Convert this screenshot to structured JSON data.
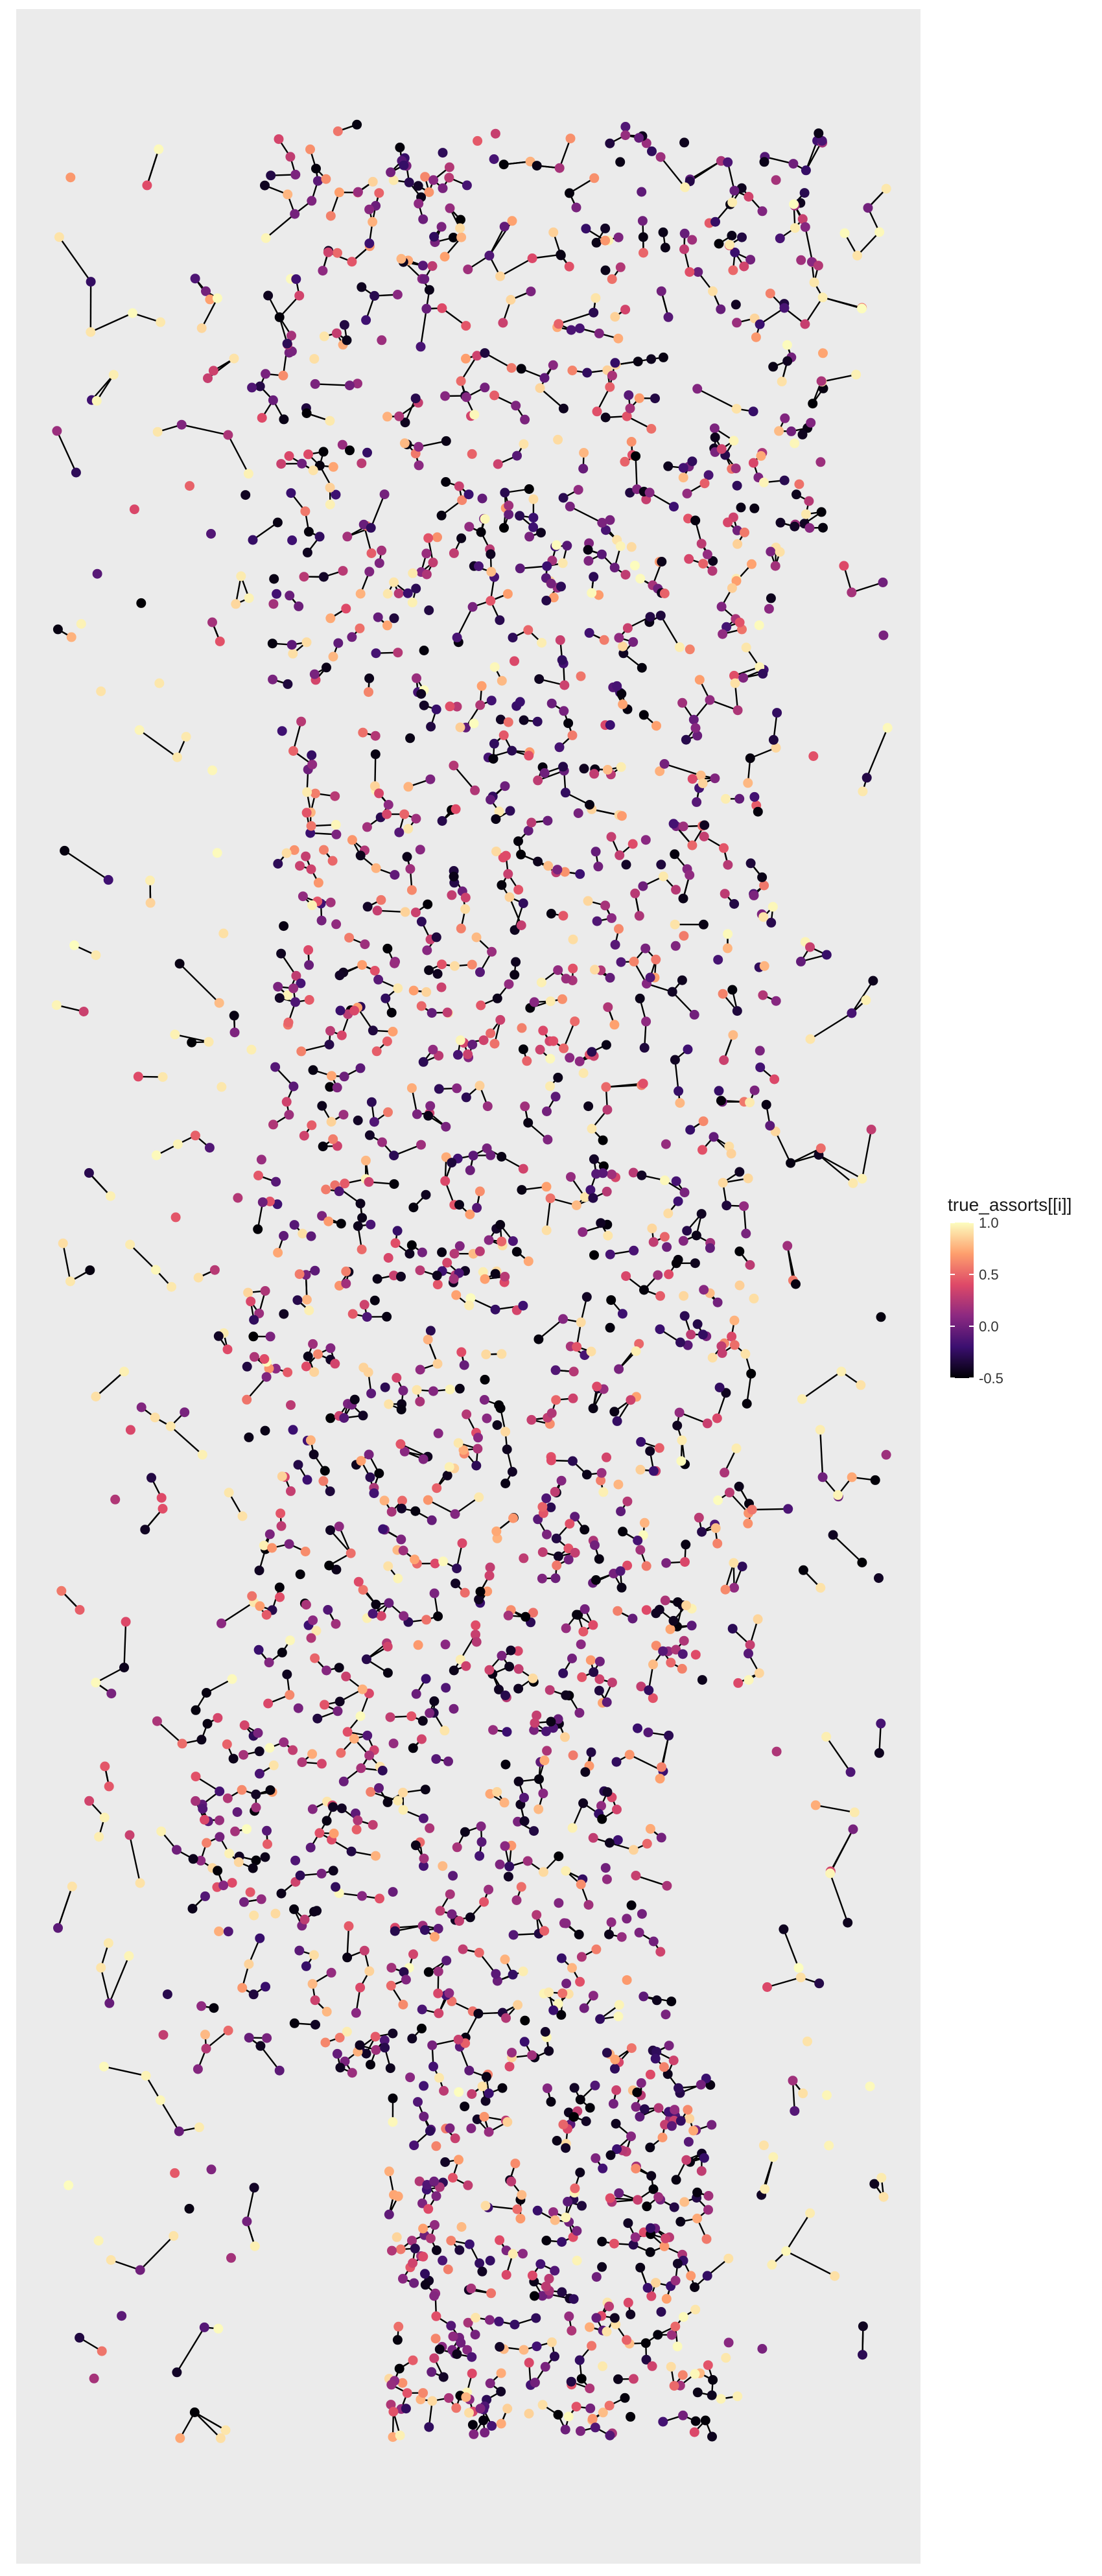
{
  "chart_data": {
    "type": "scatter",
    "subtype": "network graph (nodes colored by value, edges as black lines)",
    "title": "",
    "xlabel": "",
    "ylabel": "",
    "axes_visible": false,
    "grid": false,
    "panel_background": "#ebebeb",
    "edge_color": "#000000",
    "legend": {
      "title": "true_assorts[[i]]",
      "placement": "right",
      "type": "colorbar",
      "range": [
        -0.5,
        1.0
      ],
      "ticks": [
        1.0,
        0.5,
        0.0,
        -0.5
      ],
      "tick_labels": [
        "1.0",
        "0.5",
        "0.0",
        "-0.5"
      ],
      "palette": "magma",
      "stops": [
        "#000004",
        "#3b0f70",
        "#8c2981",
        "#de4968",
        "#fe9f6d",
        "#fcfdbf"
      ]
    },
    "layout_seed": 7,
    "approx_node_count": 2600
  }
}
